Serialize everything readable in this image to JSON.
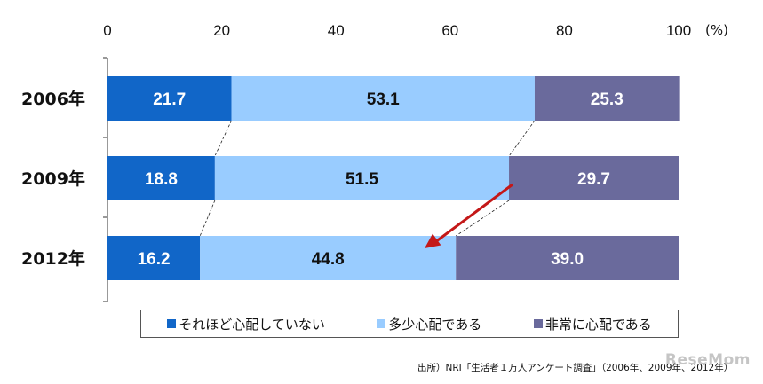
{
  "chart_data": {
    "type": "bar",
    "orientation": "horizontal",
    "stacked": true,
    "unit_label": "(%)",
    "xlim": [
      0,
      100
    ],
    "x_ticks": [
      "0",
      "20",
      "40",
      "60",
      "80",
      "100"
    ],
    "categories": [
      "2006年",
      "2009年",
      "2012年"
    ],
    "series": [
      {
        "name": "それほど心配していない",
        "values": [
          21.7,
          18.8,
          16.2
        ],
        "labels": [
          "21.7",
          "18.8",
          "16.2"
        ],
        "color": "#1166c8",
        "label_color": "#ffffff"
      },
      {
        "name": "多少心配である",
        "values": [
          53.1,
          51.5,
          44.8
        ],
        "labels": [
          "53.1",
          "51.5",
          "44.8"
        ],
        "color": "#99ccff",
        "label_color": "#111111"
      },
      {
        "name": "非常に心配である",
        "values": [
          25.3,
          29.7,
          39.0
        ],
        "labels": [
          "25.3",
          "29.7",
          "39.0"
        ],
        "color": "#6a6a9c",
        "label_color": "#ffffff"
      }
    ],
    "legend_position": "bottom",
    "annotation": "red arrow from the 2009 boundary toward the 2012 bar",
    "arrow_color": "#c41818",
    "connector_lines": "dashed between bars"
  },
  "source_text": "出所）NRI「生活者１万人アンケート調査」（2006年、2009年、2012年）",
  "watermark": "ReseMom"
}
